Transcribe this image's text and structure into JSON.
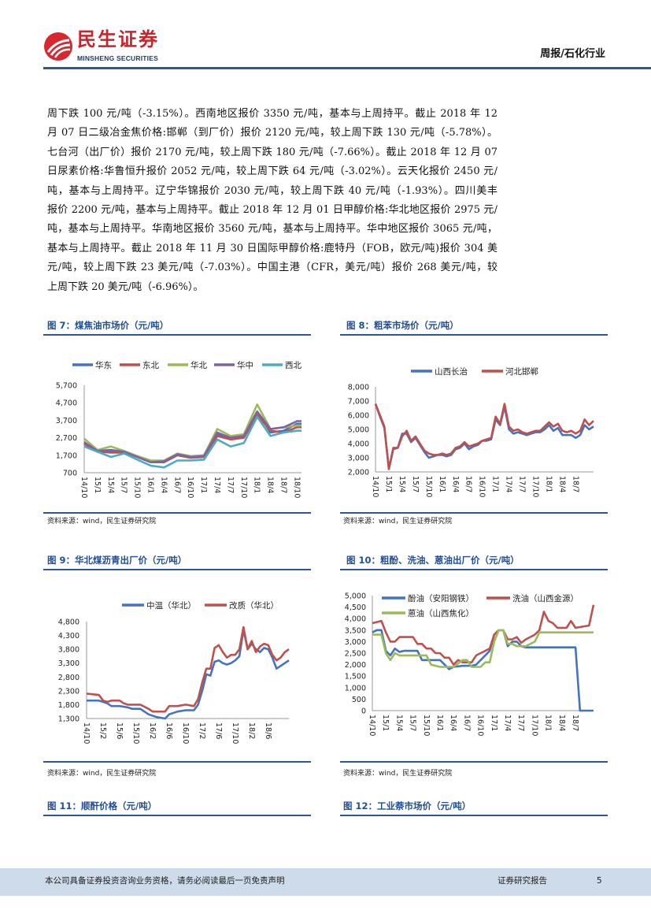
{
  "header": {
    "logo_cn": "民生证券",
    "logo_en": "MINSHENG SECURITIES",
    "section": "周报/石化行业"
  },
  "body": {
    "lines": [
      "周下跌 100 元/吨（-3.15%）。西南地区报价 3350 元/吨，基本与上周持平。截止 2018 年 12",
      "月 07 日二级冶金焦价格:邯郸（到厂价）报价 2120 元/吨，较上周下跌 130 元/吨（-5.78%）。",
      "七台河（出厂价）报价 2170 元/吨，较上周下跌 180 元/吨（-7.66%）。截止 2018 年 12 月 07",
      "日尿素价格:华鲁恒升报价 2052 元/吨，较上周下跌 64 元/吨（-3.02%）。云天化报价 2450 元/",
      "吨，基本与上周持平。辽宁华锦报价 2030 元/吨，较上周下跌 40 元/吨（-1.93%）。四川美丰",
      "报价 2200 元/吨，基本与上周持平。截止 2018 年 12 月 01 日甲醇价格:华北地区报价 2975 元/",
      "吨，基本与上周持平。华南地区报价 3560 元/吨，基本与上周持平。华中地区报价 3065 元/吨，",
      "基本与上周持平。截止 2018 年 11 月 30 日国际甲醇价格:鹿特丹（FOB，欧元/吨)报价 304 美",
      "元/吨，较上周下跌 23 美元/吨（-7.03%）。中国主港（CFR，美元/吨）报价 268 美元/吨，较",
      "上周下跌 20 美元/吨（-6.96%）。"
    ]
  },
  "figures": [
    {
      "title": "图 7：煤焦油市场价（元/吨）",
      "source": "资料来源：wind，民生证券研究院"
    },
    {
      "title": "图 8：粗苯市场价（元/吨）",
      "source": "资料来源：wind，民生证券研究院"
    },
    {
      "title": "图 9：华北煤沥青出厂价（元/吨）",
      "source": "资料来源：wind，民生证券研究院"
    },
    {
      "title": "图 10：粗酚、洗油、蒽油出厂价（元/吨）",
      "source": "资料来源：wind，民生证券研究院"
    },
    {
      "title": "图 11：顺酐价格（元/吨）"
    },
    {
      "title": "图 12：工业萘市场价（元/吨）"
    }
  ],
  "footer": {
    "disclaimer": "本公司具备证券投资咨询业务资格，请务必阅读最后一页免责声明",
    "report_type": "证券研究报告",
    "page_number": "5"
  },
  "chart_data": [
    {
      "type": "line",
      "yticks": [
        "700",
        "1,700",
        "2,700",
        "3,700",
        "4,700",
        "5,700"
      ],
      "ylim": [
        700,
        5700
      ],
      "xlim": [
        "14/10",
        "18/11"
      ],
      "xticks": [
        "14/10",
        "15/1",
        "15/4",
        "15/7",
        "15/10",
        "16/1",
        "16/4",
        "16/7",
        "16/10",
        "17/1",
        "17/4",
        "17/7",
        "17/10",
        "18/1",
        "18/4",
        "18/7",
        "18/10"
      ],
      "legend": "top",
      "series": [
        {
          "name": "华东",
          "color": "#4472c4",
          "x": [
            "14/10",
            "15/1",
            "15/4",
            "15/7",
            "15/10",
            "16/1",
            "16/4",
            "16/7",
            "16/10",
            "17/1",
            "17/4",
            "17/7",
            "17/10",
            "18/1",
            "18/4",
            "18/7",
            "18/10",
            "18/11"
          ],
          "values": [
            2400,
            1900,
            1900,
            1900,
            1600,
            1300,
            1350,
            1750,
            1600,
            1700,
            2900,
            2600,
            2800,
            4200,
            3000,
            3100,
            3500,
            3500
          ]
        },
        {
          "name": "东北",
          "color": "#c0504d",
          "x": [
            "14/10",
            "15/1",
            "15/4",
            "15/7",
            "15/10",
            "16/1",
            "16/4",
            "16/7",
            "16/10",
            "17/1",
            "17/4",
            "17/7",
            "17/10",
            "18/1",
            "18/4",
            "18/7",
            "18/10",
            "18/11"
          ],
          "values": [
            2350,
            1900,
            1850,
            1850,
            1600,
            1300,
            1300,
            1700,
            1550,
            1600,
            2800,
            2600,
            2700,
            4000,
            3100,
            3000,
            3300,
            3300
          ]
        },
        {
          "name": "华北",
          "color": "#9bbb59",
          "x": [
            "14/10",
            "15/1",
            "15/4",
            "15/7",
            "15/10",
            "16/1",
            "16/4",
            "16/7",
            "16/10",
            "17/1",
            "17/4",
            "17/7",
            "17/10",
            "18/1",
            "18/4",
            "18/7",
            "18/10",
            "18/11"
          ],
          "values": [
            2650,
            2000,
            2200,
            1950,
            1650,
            1400,
            1400,
            1800,
            1650,
            1700,
            3200,
            2800,
            2900,
            4600,
            3200,
            3300,
            3400,
            3400
          ]
        },
        {
          "name": "华中",
          "color": "#8064a2",
          "x": [
            "14/10",
            "15/1",
            "15/4",
            "15/7",
            "15/10",
            "16/1",
            "16/4",
            "16/7",
            "16/10",
            "17/1",
            "17/4",
            "17/7",
            "17/10",
            "18/1",
            "18/4",
            "18/7",
            "18/10",
            "18/11"
          ],
          "values": [
            2450,
            1950,
            2000,
            1900,
            1600,
            1300,
            1350,
            1750,
            1600,
            1650,
            3000,
            2700,
            2800,
            4200,
            3200,
            3300,
            3650,
            3650
          ]
        },
        {
          "name": "西北",
          "color": "#4bacc6",
          "x": [
            "14/10",
            "15/1",
            "15/4",
            "15/7",
            "15/10",
            "16/1",
            "16/4",
            "16/7",
            "16/10",
            "17/1",
            "17/4",
            "17/7",
            "17/10",
            "18/1",
            "18/4",
            "18/7",
            "18/10",
            "18/11"
          ],
          "values": [
            2200,
            1900,
            1600,
            1800,
            1450,
            1100,
            1000,
            1400,
            1400,
            1450,
            2600,
            2200,
            2400,
            3900,
            2800,
            3000,
            3100,
            3100
          ]
        }
      ]
    },
    {
      "type": "line",
      "yticks": [
        "2,000",
        "3,000",
        "4,000",
        "5,000",
        "6,000",
        "7,000",
        "8,000"
      ],
      "ylim": [
        2000,
        8000
      ],
      "xlim": [
        "14/10",
        "18/11"
      ],
      "xticks": [
        "14/10",
        "15/1",
        "15/4",
        "15/7",
        "15/10",
        "16/1",
        "16/4",
        "16/7",
        "16/10",
        "17/1",
        "17/4",
        "17/7",
        "17/10",
        "18/1",
        "18/4",
        "18/7"
      ],
      "legend": "top",
      "series": [
        {
          "name": "山西长治",
          "color": "#4472c4",
          "x": [
            "14/10",
            "14/11",
            "14/12",
            "15/1",
            "15/2",
            "15/3",
            "15/4",
            "15/5",
            "15/6",
            "15/7",
            "15/8",
            "15/9",
            "15/10",
            "15/11",
            "15/12",
            "16/1",
            "16/2",
            "16/3",
            "16/4",
            "16/5",
            "16/6",
            "16/7",
            "16/8",
            "16/9",
            "16/10",
            "16/11",
            "16/12",
            "17/1",
            "17/2",
            "17/3",
            "17/4",
            "17/5",
            "17/6",
            "17/7",
            "17/8",
            "17/9",
            "17/10",
            "17/11",
            "17/12",
            "18/1",
            "18/2",
            "18/3",
            "18/4",
            "18/5",
            "18/6",
            "18/7",
            "18/8",
            "18/9",
            "18/10",
            "18/11"
          ],
          "values": [
            6800,
            5900,
            5100,
            2200,
            3600,
            3700,
            4700,
            4700,
            4100,
            4400,
            3900,
            3400,
            3000,
            3100,
            3200,
            3200,
            3100,
            3200,
            3600,
            3700,
            4000,
            3600,
            3800,
            3900,
            4200,
            4200,
            4300,
            5700,
            5300,
            6600,
            5000,
            4700,
            4800,
            4700,
            4600,
            4700,
            4800,
            4800,
            5000,
            5300,
            4900,
            5100,
            4600,
            4600,
            4600,
            4400,
            4600,
            5300,
            5000,
            5200
          ]
        },
        {
          "name": "河北邯郸",
          "color": "#c0504d",
          "x": [
            "14/10",
            "14/11",
            "14/12",
            "15/1",
            "15/2",
            "15/3",
            "15/4",
            "15/5",
            "15/6",
            "15/7",
            "15/8",
            "15/9",
            "15/10",
            "15/11",
            "15/12",
            "16/1",
            "16/2",
            "16/3",
            "16/4",
            "16/5",
            "16/6",
            "16/7",
            "16/8",
            "16/9",
            "16/10",
            "16/11",
            "16/12",
            "17/1",
            "17/2",
            "17/3",
            "17/4",
            "17/5",
            "17/6",
            "17/7",
            "17/8",
            "17/9",
            "17/10",
            "17/11",
            "17/12",
            "18/1",
            "18/2",
            "18/3",
            "18/4",
            "18/5",
            "18/6",
            "18/7",
            "18/8",
            "18/9",
            "18/10",
            "18/11"
          ],
          "values": [
            6800,
            6000,
            5200,
            2200,
            3700,
            3700,
            4500,
            4900,
            4200,
            4500,
            4000,
            3500,
            3300,
            3200,
            3200,
            3300,
            3200,
            3300,
            3700,
            3800,
            4100,
            3800,
            3900,
            4000,
            4200,
            4300,
            4400,
            5900,
            5400,
            6800,
            5200,
            4900,
            5000,
            4800,
            4700,
            4800,
            4900,
            4900,
            5200,
            5500,
            5200,
            5400,
            4900,
            4800,
            4900,
            4700,
            4900,
            5700,
            5300,
            5600
          ]
        }
      ]
    },
    {
      "type": "line",
      "yticks": [
        "1,300",
        "1,800",
        "2,300",
        "2,800",
        "3,300",
        "3,800",
        "4,300",
        "4,800"
      ],
      "ylim": [
        1300,
        4800
      ],
      "xlim": [
        "14/10",
        "18/11"
      ],
      "xticks": [
        "14/10",
        "15/2",
        "15/6",
        "15/10",
        "16/2",
        "16/6",
        "16/10",
        "17/2",
        "17/6",
        "17/10",
        "18/2",
        "18/6"
      ],
      "legend": "top",
      "series": [
        {
          "name": "中温（华北）",
          "color": "#4472c4",
          "x": [
            "14/10",
            "15/1",
            "15/3",
            "15/4",
            "15/6",
            "15/8",
            "15/9",
            "15/11",
            "16/1",
            "16/3",
            "16/5",
            "16/6",
            "16/8",
            "16/10",
            "16/12",
            "17/1",
            "17/2",
            "17/3",
            "17/4",
            "17/5",
            "17/6",
            "17/7",
            "17/8",
            "17/9",
            "17/10",
            "17/11",
            "17/12",
            "18/1",
            "18/2",
            "18/3",
            "18/4",
            "18/5",
            "18/6",
            "18/7",
            "18/8",
            "18/9",
            "18/10",
            "18/11"
          ],
          "values": [
            1950,
            1950,
            1850,
            1750,
            1750,
            1700,
            1650,
            1650,
            1450,
            1350,
            1300,
            1450,
            1550,
            1600,
            1600,
            1800,
            2300,
            2900,
            2850,
            3350,
            3400,
            3300,
            3250,
            3300,
            3400,
            3550,
            4500,
            3800,
            4000,
            3800,
            3700,
            3850,
            3800,
            3500,
            3100,
            3200,
            3300,
            3400
          ]
        },
        {
          "name": "改质（华北）",
          "color": "#c0504d",
          "x": [
            "14/10",
            "15/1",
            "15/2",
            "15/3",
            "15/4",
            "15/6",
            "15/7",
            "15/8",
            "15/11",
            "16/1",
            "16/2",
            "16/5",
            "16/6",
            "16/8",
            "16/10",
            "16/12",
            "17/1",
            "17/2",
            "17/3",
            "17/4",
            "17/5",
            "17/6",
            "17/7",
            "17/8",
            "17/9",
            "17/10",
            "17/11",
            "17/12",
            "18/1",
            "18/2",
            "18/3",
            "18/4",
            "18/5",
            "18/6",
            "18/7",
            "18/8",
            "18/9",
            "18/10",
            "18/11"
          ],
          "values": [
            2200,
            2150,
            1950,
            1900,
            1950,
            1950,
            1850,
            1800,
            1800,
            1650,
            1550,
            1550,
            1750,
            1750,
            1800,
            1750,
            2000,
            2600,
            3100,
            3100,
            3850,
            3950,
            3700,
            3500,
            3600,
            3600,
            3800,
            4600,
            3800,
            4100,
            3700,
            3900,
            4000,
            3950,
            3600,
            3400,
            3500,
            3700,
            3800
          ]
        }
      ]
    },
    {
      "type": "line",
      "yticks": [
        "0",
        "500",
        "1,000",
        "1,500",
        "2,000",
        "2,500",
        "3,000",
        "3,500",
        "4,000",
        "4,500",
        "5,000"
      ],
      "ylim": [
        0,
        5000
      ],
      "xlim": [
        "14/10",
        "18/11"
      ],
      "xticks": [
        "14/10",
        "15/1",
        "15/4",
        "15/7",
        "15/10",
        "16/1",
        "16/4",
        "16/7",
        "16/10",
        "17/1",
        "17/4",
        "17/7",
        "17/10",
        "18/1",
        "18/4",
        "18/7"
      ],
      "legend": "top",
      "series": [
        {
          "name": "酚油（安阳钢铁）",
          "color": "#4472c4",
          "x": [
            "14/10",
            "14/11",
            "14/12",
            "15/1",
            "15/2",
            "15/3",
            "15/4",
            "15/5",
            "15/8",
            "15/9",
            "15/11",
            "15/12",
            "16/1",
            "16/2",
            "16/3",
            "16/4",
            "16/6",
            "16/8",
            "16/9",
            "16/10",
            "16/12",
            "17/1",
            "17/2",
            "17/3",
            "17/4",
            "17/5",
            "17/6",
            "17/7",
            "17/8",
            "18/7",
            "18/8",
            "18/11"
          ],
          "values": [
            3400,
            3500,
            3500,
            2600,
            2400,
            2700,
            2550,
            2600,
            2600,
            2200,
            2200,
            2200,
            2200,
            2000,
            1800,
            1900,
            1950,
            1950,
            2000,
            2200,
            2600,
            3300,
            3500,
            3500,
            2800,
            3000,
            3000,
            2800,
            2750,
            2750,
            0,
            0
          ]
        },
        {
          "name": "洗油（山西金源）",
          "color": "#c0504d",
          "x": [
            "14/10",
            "14/12",
            "15/1",
            "15/2",
            "15/3",
            "15/4",
            "15/7",
            "15/8",
            "15/9",
            "15/10",
            "15/11",
            "15/12",
            "16/1",
            "16/2",
            "16/3",
            "16/4",
            "16/5",
            "16/6",
            "16/8",
            "16/9",
            "16/10",
            "16/12",
            "17/1",
            "17/2",
            "17/3",
            "17/4",
            "17/5",
            "17/6",
            "17/7",
            "17/8",
            "17/10",
            "17/11",
            "17/12",
            "18/1",
            "18/2",
            "18/3",
            "18/5",
            "18/6",
            "18/7",
            "18/10",
            "18/11"
          ],
          "values": [
            3800,
            3900,
            3400,
            3000,
            3000,
            3200,
            3200,
            2900,
            2900,
            2700,
            2700,
            2500,
            2500,
            2300,
            2300,
            2000,
            2200,
            2100,
            2100,
            2400,
            2500,
            2700,
            3300,
            3500,
            3500,
            3100,
            3100,
            3200,
            2950,
            3100,
            3300,
            3500,
            4300,
            3900,
            3800,
            3600,
            3600,
            3900,
            3600,
            3700,
            4600
          ]
        },
        {
          "name": "蒽油（山西焦化）",
          "color": "#9bbb59",
          "x": [
            "14/10",
            "14/12",
            "15/1",
            "15/2",
            "15/3",
            "15/4",
            "15/10",
            "15/11",
            "16/1",
            "16/4",
            "16/6",
            "16/7",
            "16/8",
            "16/10",
            "16/11",
            "16/12",
            "17/1",
            "17/2",
            "17/3",
            "17/4",
            "17/5",
            "17/6",
            "17/8",
            "17/10",
            "17/11",
            "18/11"
          ],
          "values": [
            3300,
            3300,
            2500,
            2200,
            2500,
            2400,
            2400,
            2000,
            1900,
            1900,
            2200,
            2200,
            1900,
            1900,
            2100,
            2100,
            3000,
            3500,
            3500,
            2900,
            2900,
            2800,
            2800,
            3000,
            3400,
            3400
          ]
        }
      ]
    }
  ]
}
